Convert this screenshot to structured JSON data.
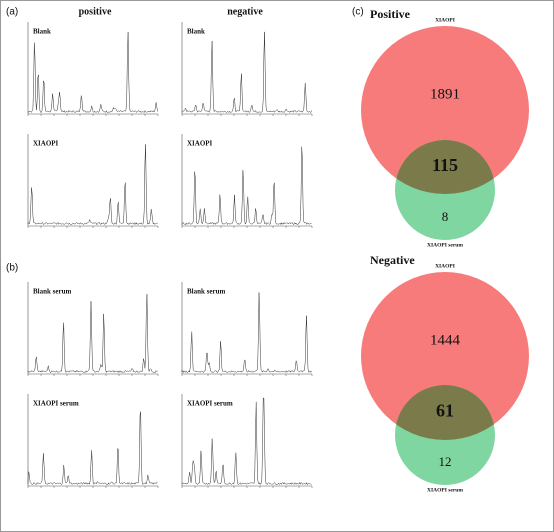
{
  "panels": {
    "a": {
      "label": "(a)",
      "columns": [
        "positive",
        "negative"
      ],
      "plots": [
        "Blank",
        "Blank",
        "XIAOPI",
        "XIAOPI"
      ]
    },
    "b": {
      "label": "(b)",
      "plots": [
        "Blank serum",
        "Blank serum",
        "XIAOPI serum",
        "XIAOPI serum"
      ]
    },
    "c": {
      "label": "(c)",
      "venns": [
        {
          "title": "Positive",
          "set_a": "XIAOPI",
          "set_b": "XIAOPI serum",
          "only_a": "1891",
          "both": "115",
          "only_b": "8"
        },
        {
          "title": "Negative",
          "set_a": "XIAOPI",
          "set_b": "XIAOPI serum",
          "only_a": "1444",
          "both": "61",
          "only_b": "12"
        }
      ]
    }
  }
}
